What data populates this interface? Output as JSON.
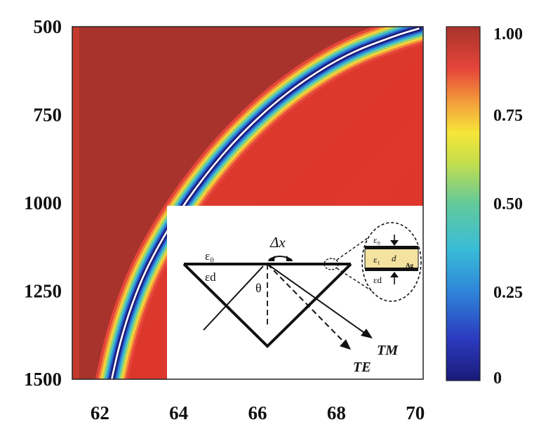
{
  "chart_data": {
    "type": "heatmap",
    "title": "",
    "xlabel": "",
    "ylabel": "",
    "xlim": [
      61.3,
      70.2
    ],
    "ylim": [
      1500,
      500
    ],
    "x_ticks": [
      "62",
      "64",
      "66",
      "68",
      "70"
    ],
    "y_ticks": [
      "500",
      "750",
      "1000",
      "1250",
      "1500"
    ],
    "colorbar": {
      "range": [
        0,
        1
      ],
      "ticks": [
        "1.00",
        "0.75",
        "0.50",
        "0.25",
        "0"
      ],
      "colormap": "jet"
    },
    "resonance_curve": {
      "description_free": true,
      "x": [
        62.3,
        62.5,
        62.8,
        63.2,
        63.8,
        64.6,
        65.6,
        66.8,
        68.2,
        69.5,
        70.1
      ],
      "y": [
        1500,
        1400,
        1290,
        1180,
        1060,
        930,
        800,
        680,
        580,
        525,
        505
      ],
      "min_value": 0.0
    },
    "background_values": {
      "left_of_curve": 0.96,
      "right_of_curve": 0.88
    },
    "colors": {
      "curve_line": "#ffffff",
      "dark_red": "#a8332c",
      "red": "#e0352a"
    }
  },
  "inset": {
    "eps0_left": "ε₀",
    "epsd_left": "εd",
    "delta_x": "Δx",
    "theta": "θ",
    "TM": "TM",
    "TE": "TE",
    "zoom_eps0": "ε₀",
    "zoom_eps1": "ε₁",
    "zoom_d": "d",
    "zoom_ag": "Ag",
    "zoom_epsd": "εd"
  }
}
